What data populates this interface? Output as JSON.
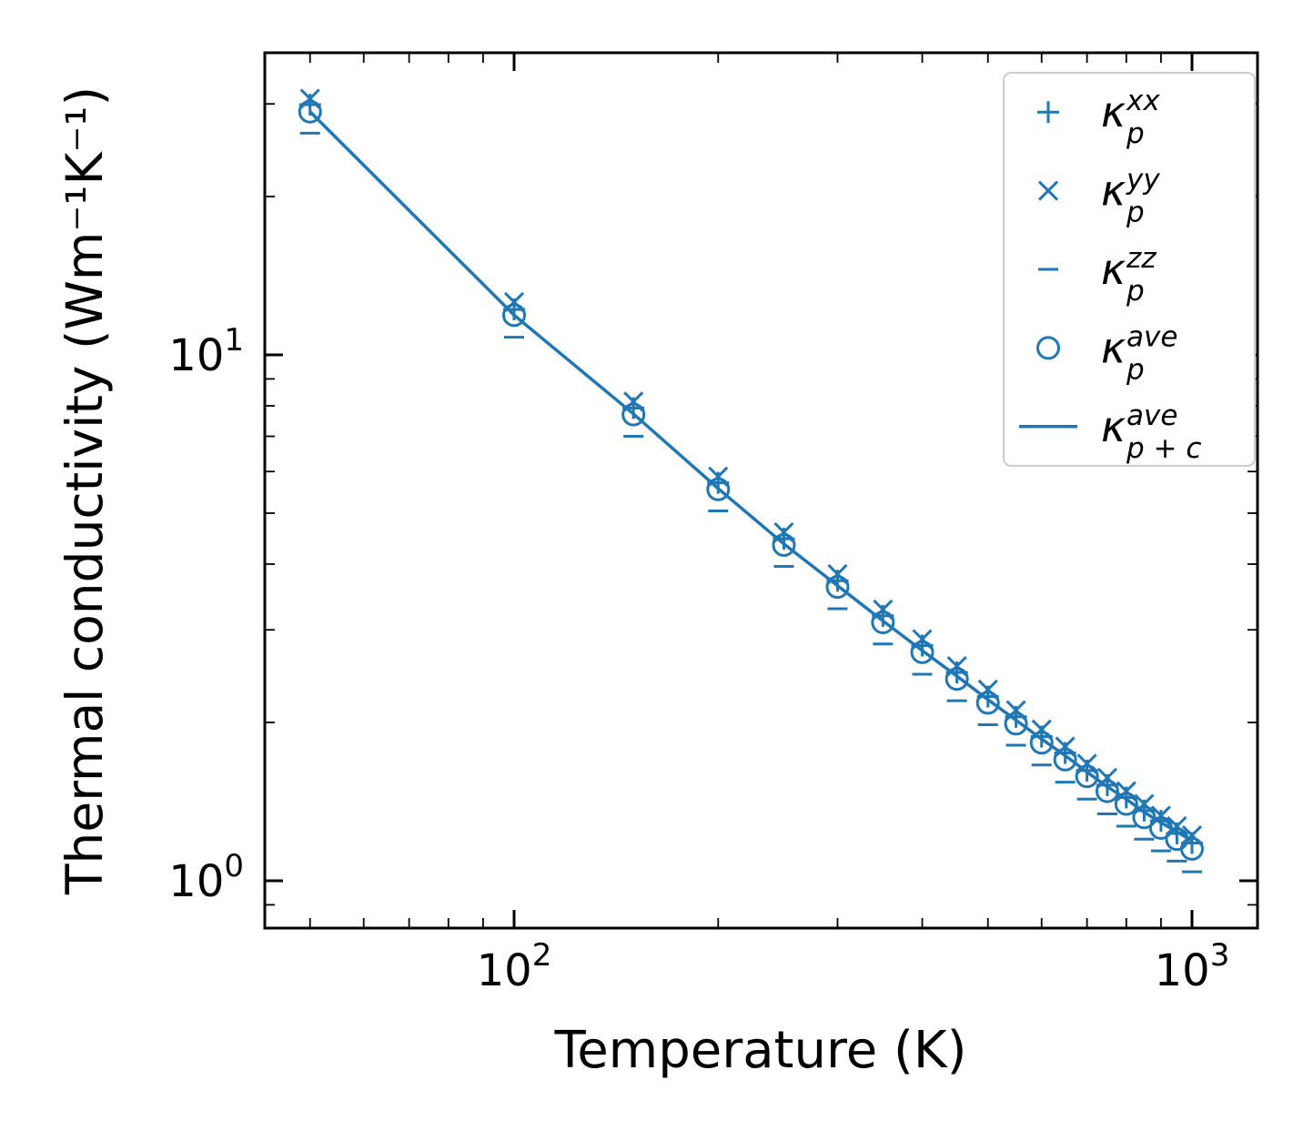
{
  "figure": {
    "background": "#ffffff",
    "accent_color": "#1f77b4"
  },
  "chart_data": {
    "type": "scatter",
    "title": "",
    "xlabel": "Temperature (K)",
    "ylabel": "Thermal conductivity (Wm⁻¹K⁻¹)",
    "x_scale": "log",
    "y_scale": "log",
    "xlim": [
      43,
      1250
    ],
    "ylim": [
      0.81,
      37.5
    ],
    "grid": false,
    "legend_position": "upper right",
    "color": "#1f77b4",
    "x_ticks": [
      {
        "value": 100,
        "base": "10",
        "exp": "2"
      },
      {
        "value": 1000,
        "base": "10",
        "exp": "3"
      }
    ],
    "y_ticks": [
      {
        "value": 1,
        "base": "10",
        "exp": "0"
      },
      {
        "value": 10,
        "base": "10",
        "exp": "1"
      }
    ],
    "x": [
      50,
      100,
      150,
      200,
      250,
      300,
      350,
      400,
      450,
      500,
      550,
      600,
      650,
      700,
      750,
      800,
      850,
      900,
      950,
      1000
    ],
    "series": [
      {
        "id": "kappa_p_xx",
        "marker": "plus",
        "label": {
          "base": "κ",
          "sub": "p",
          "sup": "xx"
        },
        "values": [
          29.9,
          12.2,
          7.92,
          5.71,
          4.47,
          3.72,
          3.19,
          2.8,
          2.49,
          2.24,
          2.05,
          1.88,
          1.75,
          1.62,
          1.52,
          1.44,
          1.36,
          1.3,
          1.23,
          1.18
        ]
      },
      {
        "id": "kappa_p_yy",
        "marker": "cross",
        "label": {
          "base": "κ",
          "sub": "p",
          "sup": "yy"
        },
        "values": [
          30.7,
          12.6,
          8.15,
          5.87,
          4.6,
          3.83,
          3.28,
          2.88,
          2.56,
          2.31,
          2.11,
          1.94,
          1.8,
          1.67,
          1.57,
          1.48,
          1.4,
          1.33,
          1.27,
          1.22
        ]
      },
      {
        "id": "kappa_p_zz",
        "marker": "dash",
        "label": {
          "base": "κ",
          "sub": "p",
          "sup": "zz"
        },
        "values": [
          26.4,
          10.8,
          7.0,
          5.05,
          3.96,
          3.29,
          2.82,
          2.47,
          2.2,
          1.98,
          1.81,
          1.66,
          1.54,
          1.43,
          1.34,
          1.27,
          1.2,
          1.14,
          1.09,
          1.04
        ]
      },
      {
        "id": "kappa_p_ave",
        "marker": "circle",
        "label": {
          "base": "κ",
          "sub": "p",
          "sup": "ave"
        },
        "values": [
          29.0,
          11.9,
          7.7,
          5.55,
          4.35,
          3.62,
          3.1,
          2.72,
          2.42,
          2.18,
          1.99,
          1.83,
          1.7,
          1.58,
          1.48,
          1.4,
          1.32,
          1.26,
          1.2,
          1.15
        ]
      },
      {
        "id": "kappa_p_plus_c_ave",
        "marker": "line",
        "label": {
          "base": "κ",
          "sub": "p + c",
          "sup": "ave"
        },
        "values": [
          29.0,
          11.9,
          7.72,
          5.57,
          4.37,
          3.64,
          3.12,
          2.74,
          2.45,
          2.21,
          2.02,
          1.86,
          1.73,
          1.61,
          1.51,
          1.43,
          1.35,
          1.29,
          1.24,
          1.19
        ]
      }
    ]
  }
}
